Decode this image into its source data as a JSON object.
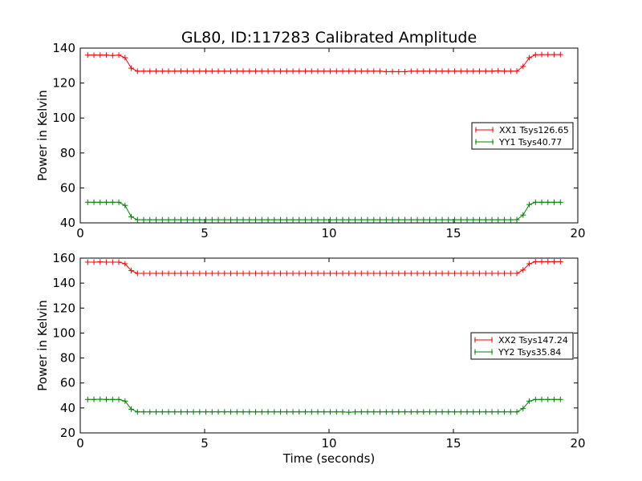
{
  "title": "GL80, ID:117283 Calibrated Amplitude",
  "chart_data": [
    {
      "type": "line",
      "title": "GL80, ID:117283 Calibrated Amplitude",
      "xlabel": "",
      "ylabel": "Power in Kelvin",
      "xlim": [
        0,
        20
      ],
      "ylim": [
        40,
        140
      ],
      "xticks": [
        "0",
        "5",
        "10",
        "15",
        "20"
      ],
      "yticks": [
        "40",
        "60",
        "80",
        "100",
        "120",
        "140"
      ],
      "grid": false,
      "legend": "center-right",
      "series": [
        {
          "name": "XX1 Tsys126.65",
          "color": "#ff0000",
          "base": 126.65,
          "edge": 136,
          "x": [
            0.3,
            0.55,
            0.8,
            1.05,
            1.3,
            1.55,
            1.8,
            2.05,
            2.3,
            2.55,
            2.8,
            3.05,
            3.3,
            3.55,
            3.8,
            4.05,
            4.3,
            4.55,
            4.8,
            5.05,
            5.3,
            5.55,
            5.8,
            6.05,
            6.3,
            6.55,
            6.8,
            7.05,
            7.3,
            7.55,
            7.8,
            8.05,
            8.3,
            8.55,
            8.8,
            9.05,
            9.3,
            9.55,
            9.8,
            10.05,
            10.3,
            10.55,
            10.8,
            11.05,
            11.3,
            11.55,
            11.8,
            12.05,
            12.3,
            12.55,
            12.8,
            13.05,
            13.3,
            13.55,
            13.8,
            14.05,
            14.3,
            14.55,
            14.8,
            15.05,
            15.3,
            15.55,
            15.8,
            16.05,
            16.3,
            16.55,
            16.8,
            17.05,
            17.3,
            17.55,
            17.8,
            18.05,
            18.3,
            18.55,
            18.8,
            19.05,
            19.3
          ],
          "y": [
            136,
            136,
            136,
            136,
            135.8,
            136,
            134.5,
            128.5,
            126.8,
            126.8,
            126.8,
            126.8,
            126.8,
            126.8,
            126.8,
            126.9,
            126.8,
            126.8,
            126.8,
            126.8,
            126.8,
            126.8,
            126.8,
            126.8,
            126.8,
            126.8,
            126.8,
            126.8,
            126.8,
            126.8,
            126.8,
            126.8,
            126.8,
            126.8,
            126.8,
            126.8,
            126.8,
            126.8,
            126.8,
            126.8,
            126.8,
            126.8,
            126.8,
            126.8,
            126.8,
            126.8,
            126.8,
            126.8,
            126.5,
            126.6,
            126.5,
            126.5,
            126.8,
            126.8,
            126.8,
            126.8,
            126.8,
            126.8,
            126.8,
            126.8,
            126.8,
            126.8,
            126.8,
            126.8,
            126.8,
            126.8,
            127,
            126.8,
            126.8,
            126.8,
            129.5,
            134.5,
            136.2,
            136.3,
            136.3,
            136.3,
            136.3
          ]
        },
        {
          "name": "YY1 Tsys40.77",
          "color": "#008000",
          "base": 41.77,
          "edge": 51.8,
          "x": [
            0.3,
            0.55,
            0.8,
            1.05,
            1.3,
            1.55,
            1.8,
            2.05,
            2.3,
            2.55,
            2.8,
            3.05,
            3.3,
            3.55,
            3.8,
            4.05,
            4.3,
            4.55,
            4.8,
            5.05,
            5.3,
            5.55,
            5.8,
            6.05,
            6.3,
            6.55,
            6.8,
            7.05,
            7.3,
            7.55,
            7.8,
            8.05,
            8.3,
            8.55,
            8.8,
            9.05,
            9.3,
            9.55,
            9.8,
            10.05,
            10.3,
            10.55,
            10.8,
            11.05,
            11.3,
            11.55,
            11.8,
            12.05,
            12.3,
            12.55,
            12.8,
            13.05,
            13.3,
            13.55,
            13.8,
            14.05,
            14.3,
            14.55,
            14.8,
            15.05,
            15.3,
            15.55,
            15.8,
            16.05,
            16.3,
            16.55,
            16.8,
            17.05,
            17.3,
            17.55,
            17.8,
            18.05,
            18.3,
            18.55,
            18.8,
            19.05,
            19.3
          ],
          "y": [
            51.8,
            51.8,
            51.8,
            51.8,
            51.8,
            51.8,
            50,
            43.5,
            41.8,
            41.8,
            41.8,
            41.8,
            41.8,
            41.8,
            41.8,
            41.8,
            41.8,
            41.8,
            41.8,
            41.8,
            41.8,
            41.8,
            41.8,
            41.8,
            41.8,
            41.8,
            41.8,
            41.8,
            41.8,
            41.8,
            41.8,
            41.8,
            41.8,
            41.8,
            41.8,
            41.8,
            41.8,
            41.8,
            41.8,
            41.8,
            41.8,
            41.8,
            41.8,
            41.8,
            41.8,
            41.8,
            41.8,
            41.8,
            41.8,
            41.8,
            41.8,
            41.8,
            41.8,
            41.8,
            41.8,
            41.8,
            41.8,
            41.8,
            41.8,
            41.8,
            41.8,
            41.8,
            41.8,
            41.8,
            41.8,
            41.8,
            41.8,
            41.8,
            41.8,
            41.8,
            44.5,
            50.5,
            51.8,
            51.8,
            51.8,
            51.8,
            51.8
          ]
        }
      ]
    },
    {
      "type": "line",
      "title": "",
      "xlabel": "Time (seconds)",
      "ylabel": "Power in Kelvin",
      "xlim": [
        0,
        20
      ],
      "ylim": [
        20,
        160
      ],
      "xticks": [
        "0",
        "5",
        "10",
        "15",
        "20"
      ],
      "yticks": [
        "20",
        "40",
        "60",
        "80",
        "100",
        "120",
        "140",
        "160"
      ],
      "grid": false,
      "legend": "center-right",
      "series": [
        {
          "name": "XX2 Tsys147.24",
          "color": "#ff0000",
          "x": [
            0.3,
            0.55,
            0.8,
            1.05,
            1.3,
            1.55,
            1.8,
            2.05,
            2.3,
            2.55,
            2.8,
            3.05,
            3.3,
            3.55,
            3.8,
            4.05,
            4.3,
            4.55,
            4.8,
            5.05,
            5.3,
            5.55,
            5.8,
            6.05,
            6.3,
            6.55,
            6.8,
            7.05,
            7.3,
            7.55,
            7.8,
            8.05,
            8.3,
            8.55,
            8.8,
            9.05,
            9.3,
            9.55,
            9.8,
            10.05,
            10.3,
            10.55,
            10.8,
            11.05,
            11.3,
            11.55,
            11.8,
            12.05,
            12.3,
            12.55,
            12.8,
            13.05,
            13.3,
            13.55,
            13.8,
            14.05,
            14.3,
            14.55,
            14.8,
            15.05,
            15.3,
            15.55,
            15.8,
            16.05,
            16.3,
            16.55,
            16.8,
            17.05,
            17.3,
            17.55,
            17.8,
            18.05,
            18.3,
            18.55,
            18.8,
            19.05,
            19.3
          ],
          "y": [
            156.8,
            156.8,
            157,
            156.8,
            156.8,
            156.8,
            155.5,
            150,
            147.8,
            147.8,
            147.8,
            147.8,
            147.8,
            147.8,
            147.8,
            147.8,
            147.8,
            147.8,
            147.8,
            147.8,
            147.8,
            147.8,
            147.8,
            147.8,
            147.8,
            147.8,
            147.8,
            147.8,
            147.8,
            147.8,
            147.8,
            147.8,
            147.8,
            147.8,
            147.8,
            147.8,
            147.8,
            147.8,
            147.8,
            147.8,
            147.8,
            147.8,
            147.8,
            147.8,
            147.8,
            147.8,
            147.8,
            147.8,
            147.8,
            147.8,
            147.8,
            147.8,
            147.8,
            147.8,
            147.8,
            147.8,
            147.8,
            147.8,
            147.8,
            147.8,
            147.8,
            147.8,
            147.8,
            147.8,
            147.8,
            147.8,
            147.8,
            147.8,
            147.8,
            147.8,
            150.5,
            155.5,
            157.2,
            157.2,
            157.2,
            157.2,
            157.2
          ]
        },
        {
          "name": "YY2 Tsys35.84",
          "color": "#008000",
          "x": [
            0.3,
            0.55,
            0.8,
            1.05,
            1.3,
            1.55,
            1.8,
            2.05,
            2.3,
            2.55,
            2.8,
            3.05,
            3.3,
            3.55,
            3.8,
            4.05,
            4.3,
            4.55,
            4.8,
            5.05,
            5.3,
            5.55,
            5.8,
            6.05,
            6.3,
            6.55,
            6.8,
            7.05,
            7.3,
            7.55,
            7.8,
            8.05,
            8.3,
            8.55,
            8.8,
            9.05,
            9.3,
            9.55,
            9.8,
            10.05,
            10.3,
            10.55,
            10.8,
            11.05,
            11.3,
            11.55,
            11.8,
            12.05,
            12.3,
            12.55,
            12.8,
            13.05,
            13.3,
            13.55,
            13.8,
            14.05,
            14.3,
            14.55,
            14.8,
            15.05,
            15.3,
            15.55,
            15.8,
            16.05,
            16.3,
            16.55,
            16.8,
            17.05,
            17.3,
            17.55,
            17.8,
            18.05,
            18.3,
            18.55,
            18.8,
            19.05,
            19.3
          ],
          "y": [
            46.8,
            46.8,
            47,
            46.8,
            46.8,
            46.8,
            45.5,
            39,
            36.8,
            36.8,
            36.8,
            36.8,
            36.8,
            36.8,
            36.8,
            36.8,
            36.8,
            36.8,
            36.8,
            36.8,
            36.8,
            36.8,
            36.8,
            36.8,
            36.8,
            36.8,
            36.8,
            36.8,
            36.8,
            36.8,
            36.8,
            36.8,
            36.8,
            36.8,
            36.8,
            36.8,
            36.8,
            36.8,
            36.8,
            36.8,
            36.8,
            36.8,
            36.6,
            36.8,
            36.8,
            36.8,
            36.8,
            36.8,
            36.8,
            36.8,
            36.8,
            36.8,
            36.8,
            36.8,
            36.8,
            36.8,
            36.8,
            36.8,
            36.8,
            36.8,
            36.8,
            36.8,
            36.8,
            36.8,
            36.8,
            36.8,
            36.8,
            36.8,
            36.8,
            36.8,
            39.5,
            45.5,
            46.8,
            46.8,
            46.8,
            46.8,
            46.8
          ]
        }
      ]
    }
  ]
}
